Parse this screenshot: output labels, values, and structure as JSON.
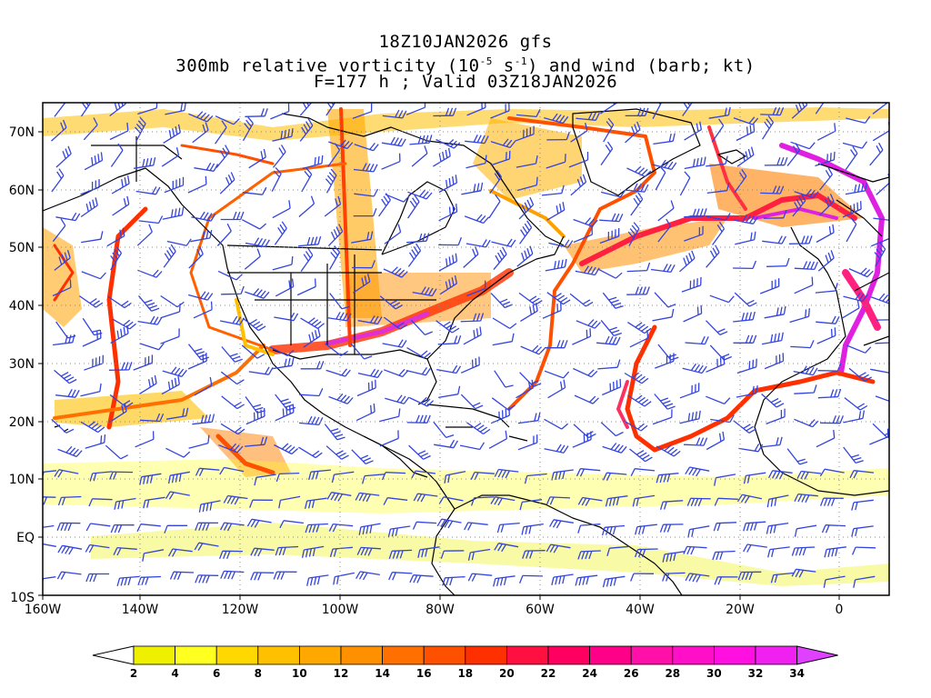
{
  "header": {
    "line1": "18Z10JAN2026 gfs",
    "line2_pre": "300mb relative vorticity (10",
    "line2_exp1": "-5",
    "line2_mid": " s",
    "line2_exp2": "-1",
    "line2_post": ") and wind (barb; kt)",
    "line3": "F=177 h ; Valid 03Z18JAN2026"
  },
  "map": {
    "lat_range": [
      -10,
      75
    ],
    "lon_range": [
      -160,
      10
    ],
    "lat_ticks": [
      "70N",
      "60N",
      "50N",
      "40N",
      "30N",
      "20N",
      "10N",
      "EQ",
      "10S"
    ],
    "lon_ticks": [
      "160W",
      "140W",
      "120W",
      "100W",
      "80W",
      "60W",
      "40W",
      "20W",
      "0"
    ],
    "barb_color": "#3344dd",
    "outline_color": "#000000"
  },
  "colorbar": {
    "labels": [
      "2",
      "4",
      "6",
      "8",
      "10",
      "12",
      "14",
      "16",
      "18",
      "20",
      "22",
      "24",
      "26",
      "28",
      "30",
      "32",
      "34"
    ],
    "colors": [
      "#ffffff",
      "#eef000",
      "#ffff20",
      "#ffd800",
      "#ffc000",
      "#ffa800",
      "#ff9000",
      "#ff7000",
      "#ff5000",
      "#ff3000",
      "#ff1040",
      "#ff0060",
      "#ff0088",
      "#ff10a8",
      "#ff10c8",
      "#ff10e0",
      "#f020f0",
      "#e040ff"
    ]
  }
}
